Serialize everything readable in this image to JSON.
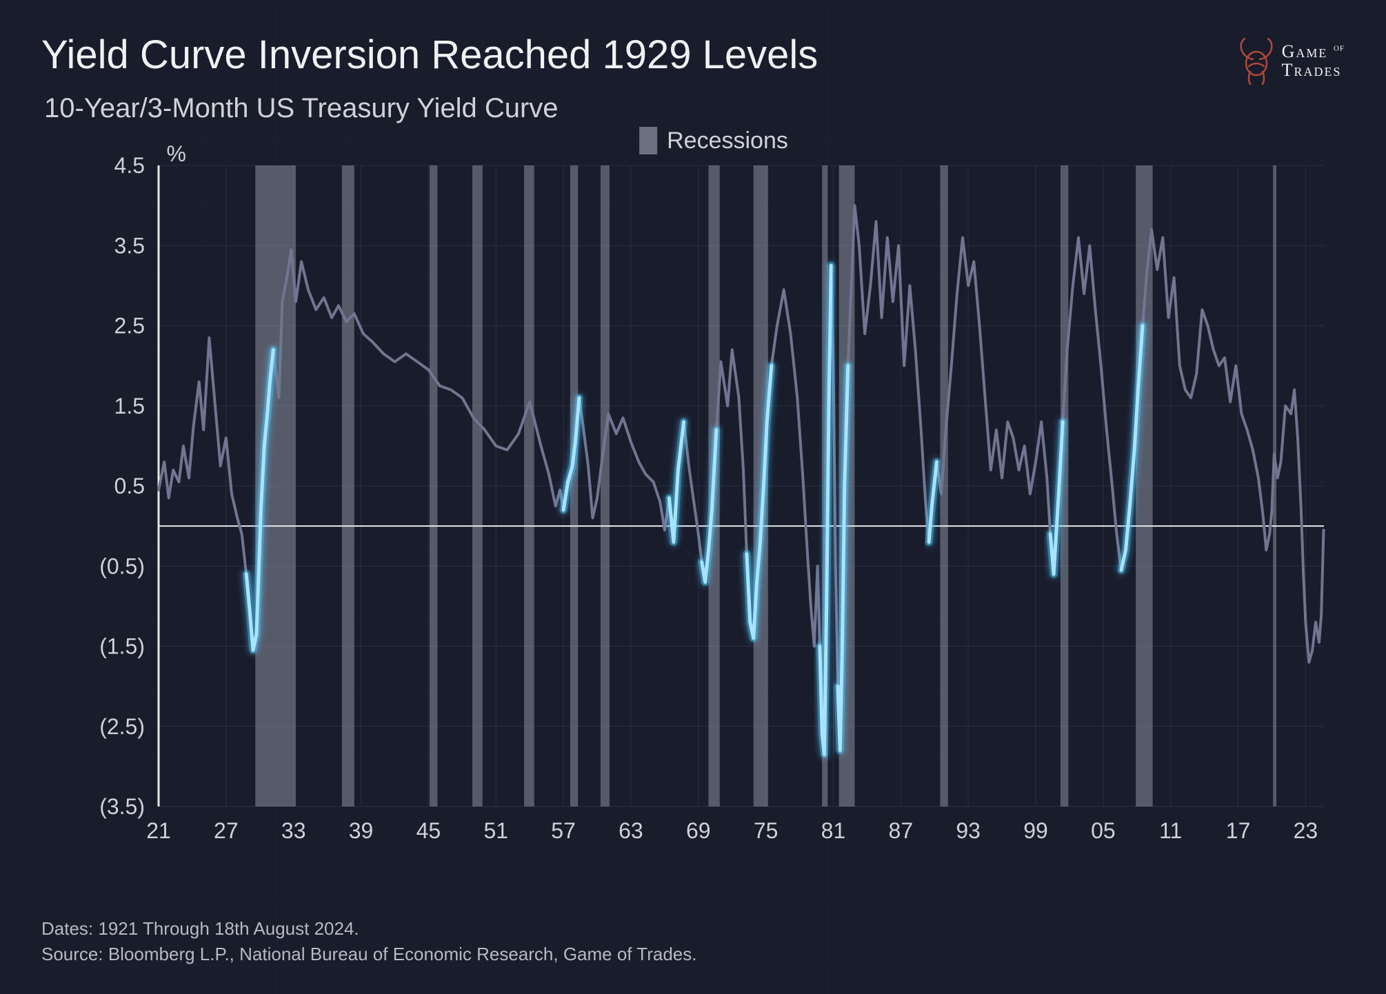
{
  "title": "Yield Curve Inversion Reached 1929 Levels",
  "subtitle": "10-Year/3-Month US Treasury Yield Curve",
  "brand": {
    "line1": "Game",
    "of": "of",
    "line2": "Trades"
  },
  "legend": {
    "label": "Recessions",
    "swatch_color": "#8a8e9c"
  },
  "y_unit": "%",
  "footer": {
    "dates": "Dates: 1921 Through 18th August 2024.",
    "source": "Source: Bloomberg L.P., National Bureau of Economic Research, Game of Trades."
  },
  "chart": {
    "type": "line",
    "background": "#181c2b",
    "grid_color": "#2a2f45",
    "axis_color": "#e8e8ea",
    "zero_line_color": "#e8e8ea",
    "main_line_color": "#70768f",
    "main_line_width": 4,
    "highlight_color": "#a8e4ff",
    "highlight_glow": "#55c9ff",
    "highlight_width": 5,
    "recession_fill": "#8a8e9c",
    "recession_opacity": 0.55,
    "x": {
      "min": 1921,
      "max": 2024.63,
      "ticks": [
        21,
        27,
        33,
        39,
        45,
        51,
        57,
        63,
        69,
        75,
        81,
        87,
        93,
        99,
        5,
        11,
        17,
        23
      ],
      "tick_years": [
        1921,
        1927,
        1933,
        1939,
        1945,
        1951,
        1957,
        1963,
        1969,
        1975,
        1981,
        1987,
        1993,
        1999,
        2005,
        2011,
        2017,
        2023
      ]
    },
    "y": {
      "min": -3.5,
      "max": 4.5,
      "ticks": [
        4.5,
        3.5,
        2.5,
        1.5,
        0.5,
        -0.5,
        -1.5,
        -2.5,
        -3.5
      ],
      "tick_labels": [
        "4.5",
        "3.5",
        "2.5",
        "1.5",
        "0.5",
        "(0.5)",
        "(1.5)",
        "(2.5)",
        "(3.5)"
      ]
    },
    "recessions": [
      [
        1929.6,
        1933.2
      ],
      [
        1937.3,
        1938.4
      ],
      [
        1945.1,
        1945.8
      ],
      [
        1948.9,
        1949.8
      ],
      [
        1953.5,
        1954.4
      ],
      [
        1957.6,
        1958.3
      ],
      [
        1960.3,
        1961.1
      ],
      [
        1969.9,
        1970.9
      ],
      [
        1973.9,
        1975.2
      ],
      [
        1980.0,
        1980.5
      ],
      [
        1981.5,
        1982.9
      ],
      [
        1990.5,
        1991.2
      ],
      [
        2001.2,
        2001.9
      ],
      [
        2007.9,
        2009.4
      ],
      [
        2020.1,
        2020.4
      ]
    ],
    "series": [
      [
        1921.0,
        0.45
      ],
      [
        1921.5,
        0.8
      ],
      [
        1921.9,
        0.35
      ],
      [
        1922.3,
        0.7
      ],
      [
        1922.8,
        0.55
      ],
      [
        1923.2,
        1.0
      ],
      [
        1923.7,
        0.6
      ],
      [
        1924.1,
        1.25
      ],
      [
        1924.6,
        1.8
      ],
      [
        1925.0,
        1.2
      ],
      [
        1925.5,
        2.35
      ],
      [
        1926.0,
        1.55
      ],
      [
        1926.5,
        0.75
      ],
      [
        1927.0,
        1.1
      ],
      [
        1927.5,
        0.4
      ],
      [
        1928.0,
        0.1
      ],
      [
        1928.4,
        -0.1
      ],
      [
        1928.8,
        -0.6
      ],
      [
        1929.1,
        -1.05
      ],
      [
        1929.4,
        -1.55
      ],
      [
        1929.7,
        -1.35
      ],
      [
        1929.9,
        -0.6
      ],
      [
        1930.1,
        0.2
      ],
      [
        1930.4,
        1.0
      ],
      [
        1930.7,
        1.45
      ],
      [
        1930.9,
        1.8
      ],
      [
        1931.2,
        2.2
      ],
      [
        1931.7,
        1.6
      ],
      [
        1932.0,
        2.8
      ],
      [
        1932.4,
        3.1
      ],
      [
        1932.8,
        3.45
      ],
      [
        1933.2,
        2.8
      ],
      [
        1933.7,
        3.3
      ],
      [
        1934.3,
        2.95
      ],
      [
        1935.0,
        2.7
      ],
      [
        1935.7,
        2.85
      ],
      [
        1936.4,
        2.6
      ],
      [
        1937.0,
        2.75
      ],
      [
        1937.7,
        2.55
      ],
      [
        1938.4,
        2.65
      ],
      [
        1939.2,
        2.4
      ],
      [
        1940.0,
        2.3
      ],
      [
        1941.0,
        2.15
      ],
      [
        1942.0,
        2.05
      ],
      [
        1943.0,
        2.15
      ],
      [
        1944.0,
        2.05
      ],
      [
        1945.0,
        1.95
      ],
      [
        1946.0,
        1.75
      ],
      [
        1947.0,
        1.7
      ],
      [
        1948.0,
        1.6
      ],
      [
        1949.0,
        1.35
      ],
      [
        1950.0,
        1.2
      ],
      [
        1951.0,
        1.0
      ],
      [
        1952.0,
        0.95
      ],
      [
        1953.0,
        1.15
      ],
      [
        1954.0,
        1.55
      ],
      [
        1955.0,
        1.0
      ],
      [
        1955.7,
        0.65
      ],
      [
        1956.3,
        0.25
      ],
      [
        1956.7,
        0.45
      ],
      [
        1957.0,
        0.2
      ],
      [
        1957.4,
        0.55
      ],
      [
        1957.8,
        0.75
      ],
      [
        1958.1,
        1.1
      ],
      [
        1958.4,
        1.6
      ],
      [
        1958.8,
        1.2
      ],
      [
        1959.2,
        0.75
      ],
      [
        1959.6,
        0.1
      ],
      [
        1960.0,
        0.35
      ],
      [
        1960.6,
        1.0
      ],
      [
        1961.0,
        1.4
      ],
      [
        1961.7,
        1.15
      ],
      [
        1962.3,
        1.35
      ],
      [
        1963.0,
        1.05
      ],
      [
        1963.7,
        0.8
      ],
      [
        1964.3,
        0.65
      ],
      [
        1965.0,
        0.55
      ],
      [
        1965.6,
        0.3
      ],
      [
        1966.0,
        -0.05
      ],
      [
        1966.4,
        0.35
      ],
      [
        1966.8,
        -0.2
      ],
      [
        1967.2,
        0.7
      ],
      [
        1967.7,
        1.3
      ],
      [
        1968.2,
        0.7
      ],
      [
        1968.7,
        0.2
      ],
      [
        1969.0,
        -0.1
      ],
      [
        1969.3,
        -0.45
      ],
      [
        1969.6,
        -0.7
      ],
      [
        1969.9,
        -0.3
      ],
      [
        1970.2,
        0.2
      ],
      [
        1970.6,
        1.2
      ],
      [
        1971.0,
        2.05
      ],
      [
        1971.6,
        1.5
      ],
      [
        1972.0,
        2.2
      ],
      [
        1972.6,
        1.6
      ],
      [
        1973.0,
        0.7
      ],
      [
        1973.3,
        -0.35
      ],
      [
        1973.6,
        -1.2
      ],
      [
        1973.9,
        -1.4
      ],
      [
        1974.2,
        -0.7
      ],
      [
        1974.5,
        -0.2
      ],
      [
        1974.8,
        0.5
      ],
      [
        1975.1,
        1.3
      ],
      [
        1975.5,
        2.0
      ],
      [
        1976.0,
        2.5
      ],
      [
        1976.6,
        2.95
      ],
      [
        1977.2,
        2.4
      ],
      [
        1977.8,
        1.6
      ],
      [
        1978.3,
        0.6
      ],
      [
        1978.7,
        -0.35
      ],
      [
        1979.0,
        -1.0
      ],
      [
        1979.3,
        -1.5
      ],
      [
        1979.6,
        -0.5
      ],
      [
        1979.8,
        -1.5
      ],
      [
        1980.0,
        -2.6
      ],
      [
        1980.2,
        -2.85
      ],
      [
        1980.4,
        -1.0
      ],
      [
        1980.6,
        1.5
      ],
      [
        1980.8,
        3.25
      ],
      [
        1981.0,
        2.0
      ],
      [
        1981.2,
        -0.5
      ],
      [
        1981.4,
        -2.0
      ],
      [
        1981.6,
        -2.8
      ],
      [
        1981.8,
        -1.5
      ],
      [
        1982.0,
        0.5
      ],
      [
        1982.3,
        2.0
      ],
      [
        1982.6,
        3.0
      ],
      [
        1982.9,
        4.0
      ],
      [
        1983.3,
        3.5
      ],
      [
        1983.8,
        2.4
      ],
      [
        1984.3,
        3.0
      ],
      [
        1984.8,
        3.8
      ],
      [
        1985.3,
        2.6
      ],
      [
        1985.8,
        3.6
      ],
      [
        1986.3,
        2.8
      ],
      [
        1986.8,
        3.5
      ],
      [
        1987.3,
        2.0
      ],
      [
        1987.8,
        3.0
      ],
      [
        1988.3,
        2.2
      ],
      [
        1988.8,
        1.2
      ],
      [
        1989.2,
        0.3
      ],
      [
        1989.5,
        -0.2
      ],
      [
        1989.8,
        0.3
      ],
      [
        1990.2,
        0.8
      ],
      [
        1990.6,
        0.4
      ],
      [
        1991.0,
        1.2
      ],
      [
        1991.5,
        2.0
      ],
      [
        1992.0,
        2.9
      ],
      [
        1992.5,
        3.6
      ],
      [
        1993.0,
        3.0
      ],
      [
        1993.5,
        3.3
      ],
      [
        1994.0,
        2.5
      ],
      [
        1994.5,
        1.6
      ],
      [
        1995.0,
        0.7
      ],
      [
        1995.5,
        1.2
      ],
      [
        1996.0,
        0.6
      ],
      [
        1996.5,
        1.3
      ],
      [
        1997.0,
        1.1
      ],
      [
        1997.5,
        0.7
      ],
      [
        1998.0,
        1.0
      ],
      [
        1998.5,
        0.4
      ],
      [
        1999.0,
        0.8
      ],
      [
        1999.5,
        1.3
      ],
      [
        2000.0,
        0.6
      ],
      [
        2000.3,
        -0.1
      ],
      [
        2000.6,
        -0.6
      ],
      [
        2001.0,
        0.3
      ],
      [
        2001.4,
        1.3
      ],
      [
        2001.8,
        2.2
      ],
      [
        2002.3,
        3.0
      ],
      [
        2002.8,
        3.6
      ],
      [
        2003.3,
        2.9
      ],
      [
        2003.8,
        3.5
      ],
      [
        2004.3,
        2.7
      ],
      [
        2004.8,
        2.0
      ],
      [
        2005.3,
        1.2
      ],
      [
        2005.8,
        0.5
      ],
      [
        2006.2,
        -0.1
      ],
      [
        2006.6,
        -0.55
      ],
      [
        2007.0,
        -0.3
      ],
      [
        2007.4,
        0.3
      ],
      [
        2007.8,
        1.0
      ],
      [
        2008.1,
        1.7
      ],
      [
        2008.5,
        2.5
      ],
      [
        2008.9,
        3.2
      ],
      [
        2009.3,
        3.7
      ],
      [
        2009.8,
        3.2
      ],
      [
        2010.3,
        3.6
      ],
      [
        2010.8,
        2.6
      ],
      [
        2011.3,
        3.1
      ],
      [
        2011.8,
        2.0
      ],
      [
        2012.3,
        1.7
      ],
      [
        2012.8,
        1.6
      ],
      [
        2013.3,
        1.9
      ],
      [
        2013.8,
        2.7
      ],
      [
        2014.3,
        2.5
      ],
      [
        2014.8,
        2.2
      ],
      [
        2015.3,
        2.0
      ],
      [
        2015.8,
        2.1
      ],
      [
        2016.3,
        1.55
      ],
      [
        2016.8,
        2.0
      ],
      [
        2017.3,
        1.4
      ],
      [
        2017.8,
        1.2
      ],
      [
        2018.3,
        0.95
      ],
      [
        2018.8,
        0.6
      ],
      [
        2019.2,
        0.15
      ],
      [
        2019.5,
        -0.3
      ],
      [
        2019.8,
        -0.1
      ],
      [
        2020.0,
        0.2
      ],
      [
        2020.2,
        0.9
      ],
      [
        2020.5,
        0.6
      ],
      [
        2020.8,
        0.8
      ],
      [
        2021.2,
        1.5
      ],
      [
        2021.7,
        1.4
      ],
      [
        2022.0,
        1.7
      ],
      [
        2022.3,
        1.1
      ],
      [
        2022.6,
        0.2
      ],
      [
        2022.8,
        -0.6
      ],
      [
        2023.0,
        -1.2
      ],
      [
        2023.3,
        -1.7
      ],
      [
        2023.6,
        -1.55
      ],
      [
        2023.9,
        -1.2
      ],
      [
        2024.2,
        -1.45
      ],
      [
        2024.4,
        -1.1
      ],
      [
        2024.6,
        -0.05
      ]
    ],
    "highlights": [
      [
        [
          1928.8,
          -0.6
        ],
        [
          1929.1,
          -1.05
        ],
        [
          1929.4,
          -1.55
        ],
        [
          1929.7,
          -1.35
        ],
        [
          1929.9,
          -0.6
        ],
        [
          1930.1,
          0.2
        ],
        [
          1930.4,
          1.0
        ],
        [
          1930.7,
          1.45
        ],
        [
          1930.9,
          1.8
        ],
        [
          1931.2,
          2.2
        ]
      ],
      [
        [
          1957.0,
          0.2
        ],
        [
          1957.4,
          0.55
        ],
        [
          1957.8,
          0.75
        ],
        [
          1958.1,
          1.1
        ],
        [
          1958.4,
          1.6
        ]
      ],
      [
        [
          1966.4,
          0.35
        ],
        [
          1966.8,
          -0.2
        ],
        [
          1967.2,
          0.7
        ],
        [
          1967.7,
          1.3
        ]
      ],
      [
        [
          1969.3,
          -0.45
        ],
        [
          1969.6,
          -0.7
        ],
        [
          1969.9,
          -0.3
        ],
        [
          1970.2,
          0.2
        ],
        [
          1970.6,
          1.2
        ]
      ],
      [
        [
          1973.3,
          -0.35
        ],
        [
          1973.6,
          -1.2
        ],
        [
          1973.9,
          -1.4
        ],
        [
          1974.2,
          -0.7
        ],
        [
          1974.5,
          -0.2
        ],
        [
          1974.8,
          0.5
        ],
        [
          1975.1,
          1.3
        ],
        [
          1975.5,
          2.0
        ]
      ],
      [
        [
          1979.8,
          -1.5
        ],
        [
          1980.0,
          -2.6
        ],
        [
          1980.2,
          -2.85
        ],
        [
          1980.4,
          -1.0
        ],
        [
          1980.6,
          1.5
        ],
        [
          1980.8,
          3.25
        ]
      ],
      [
        [
          1981.4,
          -2.0
        ],
        [
          1981.6,
          -2.8
        ],
        [
          1981.8,
          -1.5
        ],
        [
          1982.0,
          0.5
        ],
        [
          1982.3,
          2.0
        ]
      ],
      [
        [
          1989.5,
          -0.2
        ],
        [
          1989.8,
          0.3
        ],
        [
          1990.2,
          0.8
        ]
      ],
      [
        [
          2000.3,
          -0.1
        ],
        [
          2000.6,
          -0.6
        ],
        [
          2001.0,
          0.3
        ],
        [
          2001.4,
          1.3
        ]
      ],
      [
        [
          2006.6,
          -0.55
        ],
        [
          2007.0,
          -0.3
        ],
        [
          2007.4,
          0.3
        ],
        [
          2007.8,
          1.0
        ],
        [
          2008.1,
          1.7
        ],
        [
          2008.5,
          2.5
        ]
      ]
    ]
  }
}
